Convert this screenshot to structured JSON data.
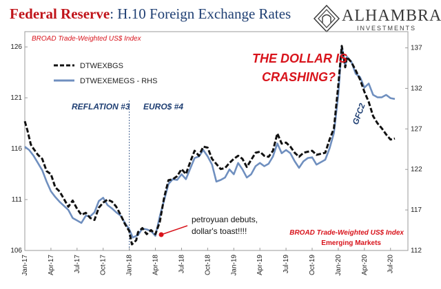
{
  "header": {
    "title_main": "Federal Reserve",
    "title_rest": ": H.10 Foreign Exchange Rates"
  },
  "logo": {
    "name": "ALHAMBRA",
    "sub": "INVESTMENTS"
  },
  "chart_data": {
    "type": "line",
    "subtitle_top": "BROAD Trade-Weighted US$ Index",
    "subtitle_bottom_1": "BROAD Trade-Weighted US$ Index",
    "subtitle_bottom_2": "Emerging Markets",
    "headline": [
      "THE DOLLAR IS",
      "CRASHING?"
    ],
    "annotations": {
      "reflation": "REFLATION #3",
      "euro": "EURO$ #4",
      "gfc2": "GFC2",
      "petroyuan_1": "petroyuan debuts,",
      "petroyuan_2": "dollar's toast!!!!"
    },
    "x_range": [
      "2017-01",
      "2020-09"
    ],
    "x_ticks": [
      "Jan-17",
      "Apr-17",
      "Jul-17",
      "Oct-17",
      "Jan-18",
      "Apr-18",
      "Jul-18",
      "Oct-18",
      "Jan-19",
      "Apr-19",
      "Jul-19",
      "Oct-19",
      "Jan-20",
      "Apr-20",
      "Jul-20"
    ],
    "y_left": {
      "ticks": [
        106,
        111,
        116,
        121,
        126
      ],
      "range": [
        106,
        127.5
      ]
    },
    "y_right": {
      "ticks": [
        112,
        117,
        122,
        127,
        132,
        137
      ],
      "range": [
        112,
        139
      ]
    },
    "vline_at": "Jan-18",
    "colors": {
      "dtwexbgs": "#111111",
      "dtwexemegs": "#6f8fbf",
      "red": "#d8131b",
      "navy": "#1f3f73"
    },
    "series": [
      {
        "name": "DTWEXBGS",
        "axis": "left",
        "style": "dashed",
        "points": [
          [
            0.0,
            118.7
          ],
          [
            0.3,
            117.8
          ],
          [
            0.7,
            116.4
          ],
          [
            1.0,
            116.0
          ],
          [
            1.5,
            115.4
          ],
          [
            2.0,
            115.0
          ],
          [
            2.5,
            113.8
          ],
          [
            3.0,
            113.5
          ],
          [
            3.5,
            112.2
          ],
          [
            4.0,
            111.8
          ],
          [
            5.0,
            110.3
          ],
          [
            5.5,
            110.9
          ],
          [
            6.0,
            110.1
          ],
          [
            6.5,
            109.5
          ],
          [
            7.0,
            109.7
          ],
          [
            7.5,
            109.2
          ],
          [
            8.0,
            109.0
          ],
          [
            8.5,
            110.2
          ],
          [
            9.0,
            110.7
          ],
          [
            9.5,
            111.0
          ],
          [
            10.0,
            110.8
          ],
          [
            10.5,
            110.3
          ],
          [
            11.0,
            109.5
          ],
          [
            11.5,
            108.6
          ],
          [
            12.0,
            107.9
          ],
          [
            12.3,
            106.6
          ],
          [
            12.8,
            107.0
          ],
          [
            13.0,
            107.8
          ],
          [
            13.5,
            108.2
          ],
          [
            14.0,
            107.6
          ],
          [
            14.5,
            108.0
          ],
          [
            15.0,
            107.6
          ],
          [
            15.5,
            108.8
          ],
          [
            16.0,
            111.2
          ],
          [
            16.5,
            112.9
          ],
          [
            17.0,
            113.0
          ],
          [
            17.5,
            113.3
          ],
          [
            18.0,
            114.0
          ],
          [
            18.5,
            113.5
          ],
          [
            19.0,
            114.7
          ],
          [
            19.5,
            115.8
          ],
          [
            20.0,
            115.3
          ],
          [
            20.5,
            116.2
          ],
          [
            21.0,
            116.1
          ],
          [
            21.5,
            115.0
          ],
          [
            22.0,
            114.5
          ],
          [
            22.5,
            114.0
          ],
          [
            23.0,
            114.1
          ],
          [
            23.5,
            114.6
          ],
          [
            24.0,
            115.0
          ],
          [
            24.5,
            115.3
          ],
          [
            25.0,
            115.0
          ],
          [
            25.5,
            114.2
          ],
          [
            26.0,
            114.9
          ],
          [
            26.5,
            115.6
          ],
          [
            27.0,
            115.7
          ],
          [
            27.5,
            115.3
          ],
          [
            28.0,
            115.2
          ],
          [
            28.5,
            115.8
          ],
          [
            29.0,
            117.5
          ],
          [
            29.5,
            116.5
          ],
          [
            30.0,
            116.6
          ],
          [
            30.5,
            116.2
          ],
          [
            31.0,
            115.6
          ],
          [
            31.5,
            115.2
          ],
          [
            32.0,
            115.6
          ],
          [
            32.5,
            115.7
          ],
          [
            33.0,
            115.8
          ],
          [
            33.5,
            115.4
          ],
          [
            34.5,
            115.6
          ],
          [
            35.0,
            116.9
          ],
          [
            35.5,
            118.0
          ],
          [
            36.0,
            122.2
          ],
          [
            36.4,
            126.1
          ],
          [
            36.8,
            124.0
          ],
          [
            37.0,
            125.0
          ],
          [
            37.5,
            124.5
          ],
          [
            38.0,
            123.7
          ],
          [
            38.5,
            122.8
          ],
          [
            39.0,
            121.6
          ],
          [
            39.5,
            120.6
          ],
          [
            40.0,
            119.2
          ],
          [
            40.5,
            118.5
          ],
          [
            41.0,
            118.0
          ],
          [
            41.5,
            117.4
          ],
          [
            42.0,
            116.9
          ],
          [
            42.5,
            117.0
          ]
        ]
      },
      {
        "name": "DTWEXEMEGS - RHS",
        "axis": "right",
        "style": "solid",
        "points": [
          [
            0.0,
            124.8
          ],
          [
            0.5,
            124.4
          ],
          [
            1.0,
            123.7
          ],
          [
            1.5,
            122.8
          ],
          [
            2.0,
            121.9
          ],
          [
            2.5,
            120.5
          ],
          [
            3.0,
            119.3
          ],
          [
            3.5,
            118.6
          ],
          [
            4.0,
            118.0
          ],
          [
            5.0,
            117.0
          ],
          [
            5.5,
            116.0
          ],
          [
            6.0,
            115.7
          ],
          [
            6.5,
            115.4
          ],
          [
            7.0,
            116.3
          ],
          [
            7.5,
            116.2
          ],
          [
            8.0,
            116.7
          ],
          [
            8.5,
            118.1
          ],
          [
            9.0,
            118.5
          ],
          [
            9.5,
            117.6
          ],
          [
            10.0,
            117.2
          ],
          [
            10.5,
            116.7
          ],
          [
            11.0,
            116.3
          ],
          [
            11.5,
            115.4
          ],
          [
            12.0,
            114.6
          ],
          [
            12.4,
            113.6
          ],
          [
            13.0,
            113.9
          ],
          [
            13.5,
            114.7
          ],
          [
            14.0,
            114.6
          ],
          [
            14.5,
            114.4
          ],
          [
            15.0,
            113.8
          ],
          [
            15.5,
            116.2
          ],
          [
            16.0,
            118.2
          ],
          [
            16.5,
            120.2
          ],
          [
            17.0,
            120.8
          ],
          [
            17.5,
            120.7
          ],
          [
            18.0,
            121.4
          ],
          [
            18.5,
            120.8
          ],
          [
            19.0,
            122.1
          ],
          [
            19.5,
            123.4
          ],
          [
            20.0,
            123.6
          ],
          [
            20.5,
            124.4
          ],
          [
            21.0,
            123.6
          ],
          [
            21.5,
            122.6
          ],
          [
            22.0,
            120.5
          ],
          [
            22.5,
            120.7
          ],
          [
            23.0,
            121.0
          ],
          [
            23.5,
            122.0
          ],
          [
            24.0,
            121.4
          ],
          [
            24.5,
            122.8
          ],
          [
            25.0,
            122.0
          ],
          [
            25.5,
            121.0
          ],
          [
            26.0,
            121.4
          ],
          [
            26.5,
            122.4
          ],
          [
            27.0,
            122.8
          ],
          [
            27.5,
            122.4
          ],
          [
            28.0,
            122.7
          ],
          [
            28.5,
            123.6
          ],
          [
            29.0,
            125.2
          ],
          [
            29.5,
            124.0
          ],
          [
            30.0,
            124.4
          ],
          [
            30.5,
            124.0
          ],
          [
            31.0,
            123.0
          ],
          [
            31.5,
            122.2
          ],
          [
            32.0,
            123.0
          ],
          [
            32.5,
            123.4
          ],
          [
            33.0,
            123.5
          ],
          [
            33.5,
            122.6
          ],
          [
            34.5,
            123.2
          ],
          [
            35.0,
            124.6
          ],
          [
            35.5,
            126.5
          ],
          [
            36.0,
            131.2
          ],
          [
            36.4,
            137.2
          ],
          [
            36.8,
            134.8
          ],
          [
            37.0,
            135.9
          ],
          [
            37.5,
            135.3
          ],
          [
            38.0,
            133.8
          ],
          [
            38.5,
            133.4
          ],
          [
            39.0,
            132.1
          ],
          [
            39.5,
            132.6
          ],
          [
            40.0,
            131.2
          ],
          [
            40.5,
            130.9
          ],
          [
            41.0,
            130.9
          ],
          [
            41.5,
            131.2
          ],
          [
            42.0,
            130.8
          ],
          [
            42.5,
            130.7
          ]
        ]
      }
    ]
  }
}
